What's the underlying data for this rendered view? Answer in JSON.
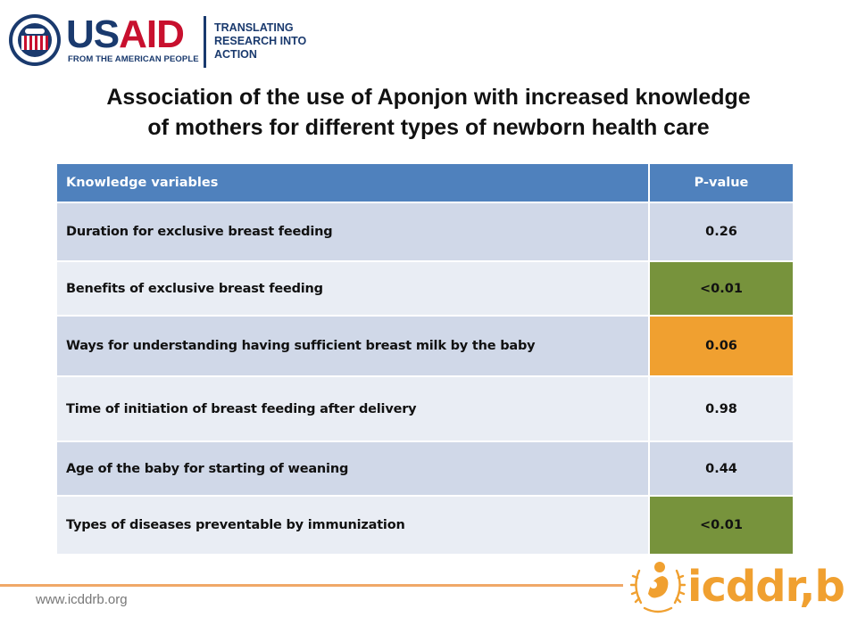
{
  "header": {
    "usaid_us": "US",
    "usaid_aid": "AID",
    "usaid_tagline": "FROM THE AMERICAN PEOPLE",
    "usaid_sub": [
      "TRANSLATING",
      "RESEARCH INTO",
      "ACTION"
    ]
  },
  "title_lines": [
    "Association of the use of Aponjon with increased knowledge",
    "of mothers for different types of newborn health care"
  ],
  "table": {
    "headers": [
      "Knowledge variables",
      "P-value"
    ],
    "rows": [
      {
        "variable": "Duration for exclusive breast feeding",
        "p_value": "0.26",
        "highlight": "none"
      },
      {
        "variable": "Benefits of exclusive breast feeding",
        "p_value": "<0.01",
        "highlight": "green"
      },
      {
        "variable": "Ways for understanding having sufficient breast milk by the baby",
        "p_value": "0.06",
        "highlight": "orange"
      },
      {
        "variable": "Time of initiation of breast feeding after delivery",
        "p_value": "0.98",
        "highlight": "none"
      },
      {
        "variable": "Age of the baby for starting of weaning",
        "p_value": "0.44",
        "highlight": "none"
      },
      {
        "variable": "Types of diseases preventable by immunization",
        "p_value": "<0.01",
        "highlight": "green"
      }
    ]
  },
  "footer": {
    "url": "www.icddrb.org",
    "brand": "icddr,b"
  },
  "colors": {
    "header_blue": "#4f81bd",
    "significant_green": "#77933c",
    "marginal_orange": "#f0a030",
    "brand_orange": "#f0a030"
  },
  "icons": [
    "usaid-seal-icon",
    "icddrb-emblem-icon"
  ]
}
